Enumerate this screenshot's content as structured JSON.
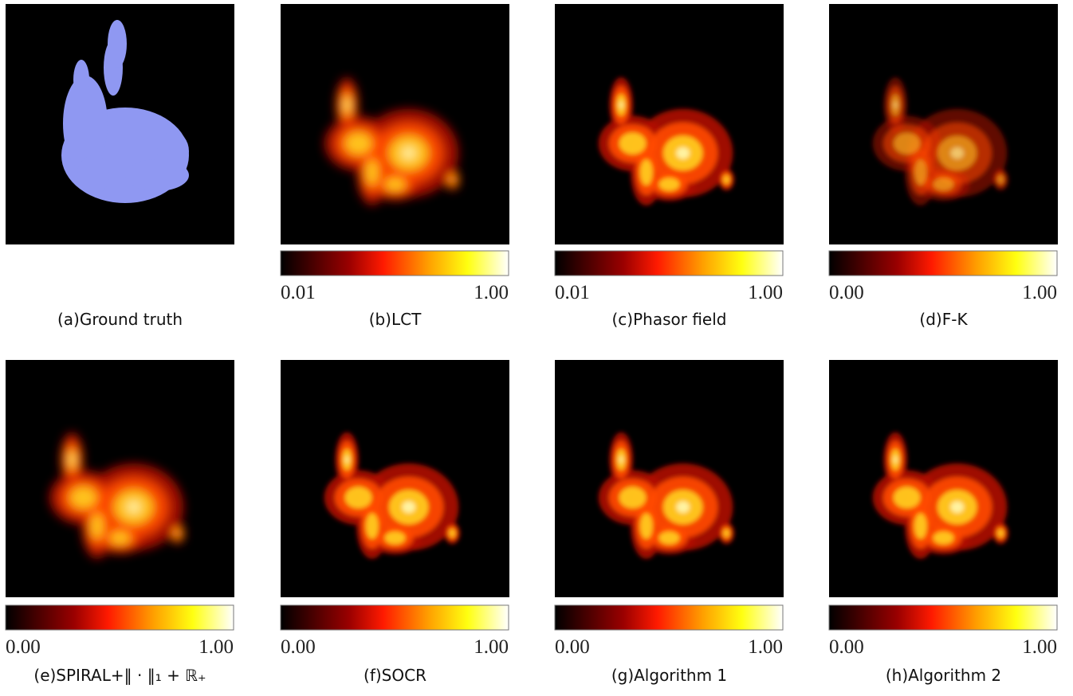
{
  "panels": [
    {
      "caption": "(a)Ground truth"
    },
    {
      "caption": "(b)LCT",
      "colorbar": {
        "min": "0.01",
        "max": "1.00"
      }
    },
    {
      "caption": "(c)Phasor field",
      "colorbar": {
        "min": "0.01",
        "max": "1.00"
      }
    },
    {
      "caption": "(d)F-K",
      "colorbar": {
        "min": "0.00",
        "max": "1.00"
      }
    },
    {
      "caption": "(e)SPIRAL+‖ · ‖₁ + ℝ₊",
      "colorbar": {
        "min": "0.00",
        "max": "1.00"
      }
    },
    {
      "caption": "(f)SOCR",
      "colorbar": {
        "min": "0.00",
        "max": "1.00"
      }
    },
    {
      "caption": "(g)Algorithm 1",
      "colorbar": {
        "min": "0.00",
        "max": "1.00"
      }
    },
    {
      "caption": "(h)Algorithm 2",
      "colorbar": {
        "min": "0.00",
        "max": "1.00"
      }
    }
  ]
}
